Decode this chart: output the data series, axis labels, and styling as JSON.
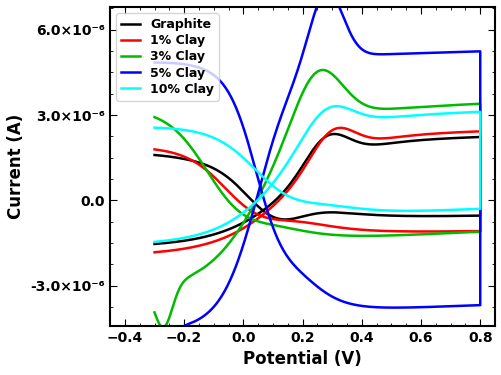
{
  "xlabel": "Potential (V)",
  "ylabel": "Current (A)",
  "xlim": [
    -0.45,
    0.85
  ],
  "ylim": [
    -4.4e-06,
    6.8e-06
  ],
  "xticks": [
    -0.4,
    -0.2,
    0.0,
    0.2,
    0.4,
    0.6,
    0.8
  ],
  "yticks": [
    -3e-06,
    0.0,
    3e-06,
    6e-06
  ],
  "legend_labels": [
    "Graphite",
    "1% Clay",
    "3% Clay",
    "5% Clay",
    "10% Clay"
  ],
  "colors": [
    "black",
    "red",
    "#00bb00",
    "blue",
    "cyan"
  ],
  "linewidth": 1.8,
  "figsize": [
    5.02,
    3.75
  ],
  "dpi": 100
}
